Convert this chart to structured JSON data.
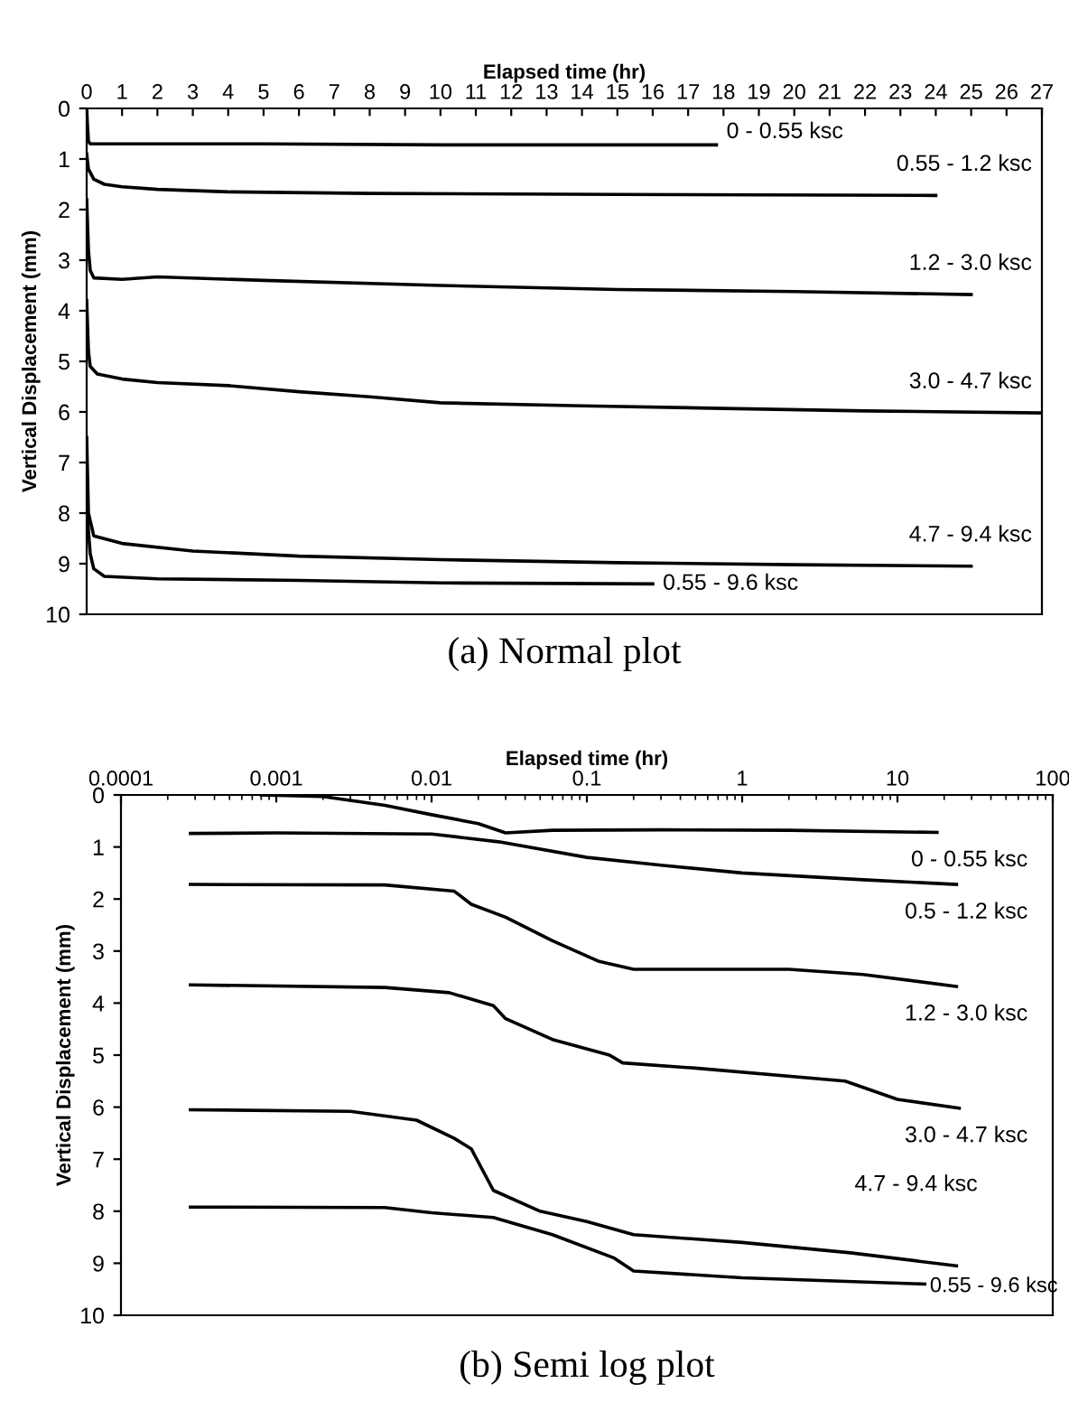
{
  "chart_data": [
    {
      "type": "line",
      "xlabel": "Elapsed time (hr)",
      "ylabel": "Vertical Displacement (mm)",
      "xlim": [
        0,
        27
      ],
      "xticks": [
        0,
        1,
        2,
        3,
        4,
        5,
        6,
        7,
        8,
        9,
        10,
        11,
        12,
        13,
        14,
        15,
        16,
        17,
        18,
        19,
        20,
        21,
        22,
        23,
        24,
        25,
        26,
        27
      ],
      "ylim": [
        10,
        0
      ],
      "yticks": [
        0,
        1,
        2,
        3,
        4,
        5,
        6,
        7,
        8,
        9,
        10
      ],
      "grid": false,
      "legend": false,
      "marker": "none",
      "line_style": "solid",
      "annotations": [
        "(a) Normal plot"
      ],
      "series": [
        {
          "name": "0 - 0.55 ksc",
          "color": "#000000",
          "x": [
            0,
            0.02,
            0.05,
            0.1,
            5,
            10,
            17.8
          ],
          "values": [
            0,
            0.3,
            0.65,
            0.7,
            0.7,
            0.72,
            0.72
          ]
        },
        {
          "name": "0.55 - 1.2 ksc",
          "color": "#000000",
          "x": [
            0,
            0.05,
            0.2,
            0.5,
            1,
            2,
            4,
            8,
            15,
            24
          ],
          "values": [
            0.9,
            1.2,
            1.4,
            1.5,
            1.55,
            1.6,
            1.65,
            1.68,
            1.7,
            1.72
          ]
        },
        {
          "name": "1.2 - 3.0 ksc",
          "color": "#000000",
          "x": [
            0,
            0.05,
            0.1,
            0.2,
            1,
            2,
            5,
            10,
            15,
            20,
            25
          ],
          "values": [
            1.8,
            2.8,
            3.2,
            3.35,
            3.38,
            3.33,
            3.4,
            3.5,
            3.58,
            3.62,
            3.68
          ]
        },
        {
          "name": "3.0 - 4.7 ksc",
          "color": "#000000",
          "x": [
            0,
            0.05,
            0.1,
            0.3,
            1,
            2,
            4,
            6,
            8,
            10,
            14,
            18,
            22,
            27
          ],
          "values": [
            3.8,
            4.8,
            5.1,
            5.25,
            5.35,
            5.42,
            5.48,
            5.6,
            5.7,
            5.82,
            5.88,
            5.93,
            5.98,
            6.02
          ]
        },
        {
          "name": "4.7 - 9.4 ksc",
          "color": "#000000",
          "x": [
            0,
            0.05,
            0.2,
            1,
            3,
            6,
            10,
            15,
            20,
            25
          ],
          "values": [
            6.5,
            8.0,
            8.45,
            8.6,
            8.75,
            8.85,
            8.92,
            8.98,
            9.02,
            9.05
          ]
        },
        {
          "name": "0.55 - 9.6 ksc",
          "color": "#000000",
          "x": [
            0,
            0.1,
            0.2,
            0.5,
            2,
            6,
            10,
            16
          ],
          "values": [
            7.9,
            8.8,
            9.1,
            9.25,
            9.3,
            9.33,
            9.38,
            9.4
          ]
        }
      ]
    },
    {
      "type": "line",
      "log": "x",
      "xlabel": "Elapsed time (hr)",
      "ylabel": "Vertical Displacement (mm)",
      "xlim": [
        0.0001,
        100
      ],
      "xticks": [
        0.0001,
        0.001,
        0.01,
        0.1,
        1,
        10,
        100
      ],
      "ylim": [
        10,
        0
      ],
      "yticks": [
        0,
        1,
        2,
        3,
        4,
        5,
        6,
        7,
        8,
        9,
        10
      ],
      "grid": false,
      "legend": false,
      "marker": "none",
      "line_style": "solid",
      "annotations": [
        "(b) Semi log plot"
      ],
      "series": [
        {
          "name": "0 - 0.55 ksc",
          "color": "#000000",
          "x": [
            0.0008,
            0.002,
            0.005,
            0.01,
            0.02,
            0.03,
            0.06,
            0.3,
            2,
            18
          ],
          "values": [
            0,
            0.03,
            0.2,
            0.38,
            0.55,
            0.73,
            0.68,
            0.67,
            0.68,
            0.72
          ]
        },
        {
          "name": "0.5 - 1.2 ksc",
          "color": "#000000",
          "x": [
            0.00028,
            0.001,
            0.01,
            0.027,
            0.1,
            0.3,
            1,
            6,
            24
          ],
          "values": [
            0.74,
            0.73,
            0.75,
            0.9,
            1.2,
            1.35,
            1.5,
            1.63,
            1.72
          ]
        },
        {
          "name": "1.2 - 3.0 ksc",
          "color": "#000000",
          "x": [
            0.00028,
            0.005,
            0.014,
            0.018,
            0.03,
            0.06,
            0.12,
            0.2,
            2,
            6,
            24
          ],
          "values": [
            1.72,
            1.73,
            1.85,
            2.1,
            2.35,
            2.8,
            3.2,
            3.35,
            3.35,
            3.45,
            3.68
          ]
        },
        {
          "name": "3.0 - 4.7 ksc",
          "color": "#000000",
          "x": [
            0.00028,
            0.005,
            0.013,
            0.025,
            0.03,
            0.06,
            0.14,
            0.17,
            0.5,
            4.6,
            10,
            25
          ],
          "values": [
            3.65,
            3.7,
            3.8,
            4.05,
            4.3,
            4.7,
            5.0,
            5.15,
            5.25,
            5.5,
            5.85,
            6.02
          ]
        },
        {
          "name": "4.7 - 9.4 ksc",
          "color": "#000000",
          "x": [
            0.00028,
            0.003,
            0.008,
            0.014,
            0.018,
            0.025,
            0.05,
            0.1,
            0.2,
            1,
            5,
            24
          ],
          "values": [
            6.05,
            6.08,
            6.25,
            6.6,
            6.8,
            7.6,
            8.0,
            8.2,
            8.45,
            8.6,
            8.8,
            9.05
          ]
        },
        {
          "name": "0.55 - 9.6 ksc",
          "color": "#000000",
          "x": [
            0.00028,
            0.005,
            0.01,
            0.025,
            0.06,
            0.15,
            0.2,
            1,
            15
          ],
          "values": [
            7.92,
            7.93,
            8.03,
            8.12,
            8.45,
            8.9,
            9.15,
            9.28,
            9.4
          ]
        }
      ]
    }
  ]
}
